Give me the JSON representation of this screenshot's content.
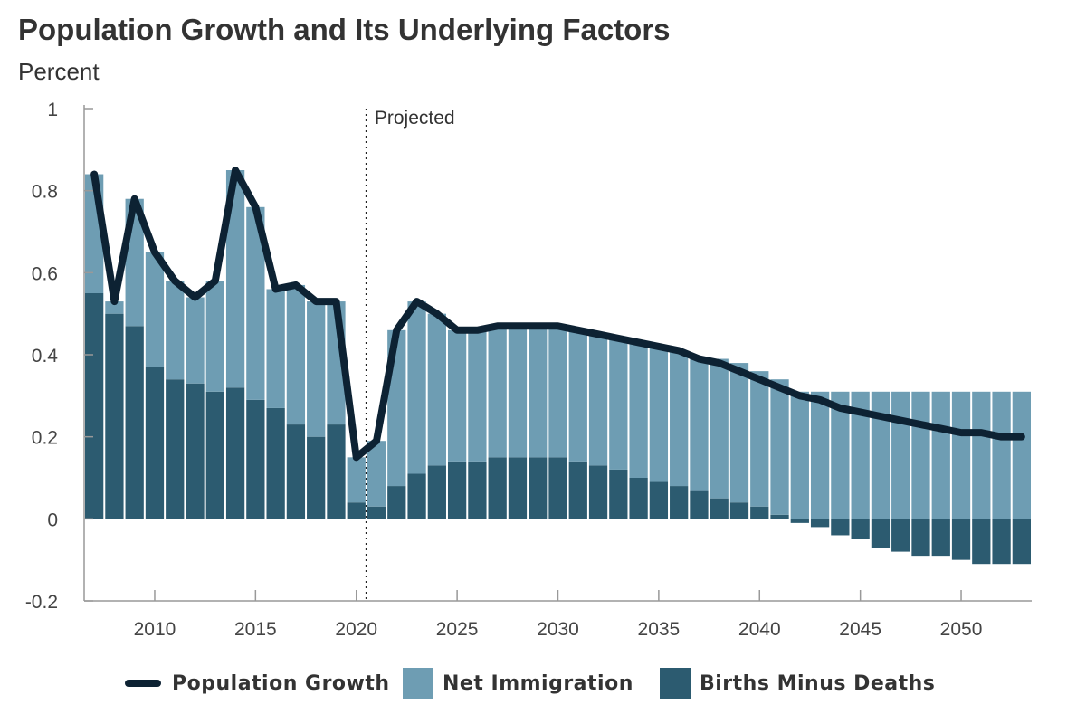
{
  "chart_data": {
    "type": "bar",
    "title": "Population Growth and Its Underlying Factors",
    "ylabel": "Percent",
    "ylim": [
      -0.2,
      1
    ],
    "yticks": [
      -0.2,
      0,
      0.2,
      0.4,
      0.6,
      0.8,
      1
    ],
    "ytick_labels": [
      "-0.2",
      "0",
      "0.2",
      "0.4",
      "0.6",
      "0.8",
      "1"
    ],
    "xlim": [
      2006.5,
      2053.5
    ],
    "xticks": [
      2010,
      2015,
      2020,
      2025,
      2030,
      2035,
      2040,
      2045,
      2050
    ],
    "xtick_labels": [
      "2010",
      "2015",
      "2020",
      "2025",
      "2030",
      "2035",
      "2040",
      "2045",
      "2050"
    ],
    "annotation": {
      "x": 2020.5,
      "label": "Projected"
    },
    "grid": false,
    "legend_position": "bottom",
    "colors": {
      "Population Growth": "#0d2233",
      "Net Immigration": "#6e9db3",
      "Births Minus Deaths": "#2c5b70"
    },
    "x": [
      2007,
      2008,
      2009,
      2010,
      2011,
      2012,
      2013,
      2014,
      2015,
      2016,
      2017,
      2018,
      2019,
      2020,
      2021,
      2022,
      2023,
      2024,
      2025,
      2026,
      2027,
      2028,
      2029,
      2030,
      2031,
      2032,
      2033,
      2034,
      2035,
      2036,
      2037,
      2038,
      2039,
      2040,
      2041,
      2042,
      2043,
      2044,
      2045,
      2046,
      2047,
      2048,
      2049,
      2050,
      2051,
      2052,
      2053
    ],
    "series": [
      {
        "name": "Births Minus Deaths",
        "type": "bar",
        "values": [
          0.55,
          0.5,
          0.47,
          0.37,
          0.34,
          0.33,
          0.31,
          0.32,
          0.29,
          0.27,
          0.23,
          0.2,
          0.23,
          0.04,
          0.03,
          0.08,
          0.11,
          0.13,
          0.14,
          0.14,
          0.15,
          0.15,
          0.15,
          0.15,
          0.14,
          0.13,
          0.12,
          0.1,
          0.09,
          0.08,
          0.07,
          0.05,
          0.04,
          0.03,
          0.01,
          -0.01,
          -0.02,
          -0.04,
          -0.05,
          -0.07,
          -0.08,
          -0.09,
          -0.09,
          -0.1,
          -0.11,
          -0.11,
          -0.11
        ]
      },
      {
        "name": "Net Immigration",
        "type": "bar",
        "values": [
          0.29,
          0.03,
          0.31,
          0.28,
          0.24,
          0.21,
          0.27,
          0.53,
          0.47,
          0.29,
          0.34,
          0.33,
          0.3,
          0.11,
          0.16,
          0.38,
          0.42,
          0.37,
          0.32,
          0.32,
          0.32,
          0.32,
          0.32,
          0.32,
          0.32,
          0.32,
          0.32,
          0.33,
          0.33,
          0.33,
          0.32,
          0.34,
          0.34,
          0.33,
          0.33,
          0.31,
          0.31,
          0.31,
          0.31,
          0.31,
          0.31,
          0.31,
          0.31,
          0.31,
          0.31,
          0.31,
          0.31
        ]
      },
      {
        "name": "Population Growth",
        "type": "line",
        "values": [
          0.84,
          0.53,
          0.78,
          0.65,
          0.58,
          0.54,
          0.58,
          0.85,
          0.76,
          0.56,
          0.57,
          0.53,
          0.53,
          0.15,
          0.19,
          0.46,
          0.53,
          0.5,
          0.46,
          0.46,
          0.47,
          0.47,
          0.47,
          0.47,
          0.46,
          0.45,
          0.44,
          0.43,
          0.42,
          0.41,
          0.39,
          0.38,
          0.36,
          0.34,
          0.32,
          0.3,
          0.29,
          0.27,
          0.26,
          0.25,
          0.24,
          0.23,
          0.22,
          0.21,
          0.21,
          0.2,
          0.2
        ]
      }
    ]
  },
  "legend": {
    "items": [
      {
        "label": "Population Growth",
        "kind": "line",
        "color": "#0d2233"
      },
      {
        "label": "Net Immigration",
        "kind": "swatch",
        "color": "#6e9db3"
      },
      {
        "label": "Births Minus Deaths",
        "kind": "swatch",
        "color": "#2c5b70"
      }
    ]
  }
}
